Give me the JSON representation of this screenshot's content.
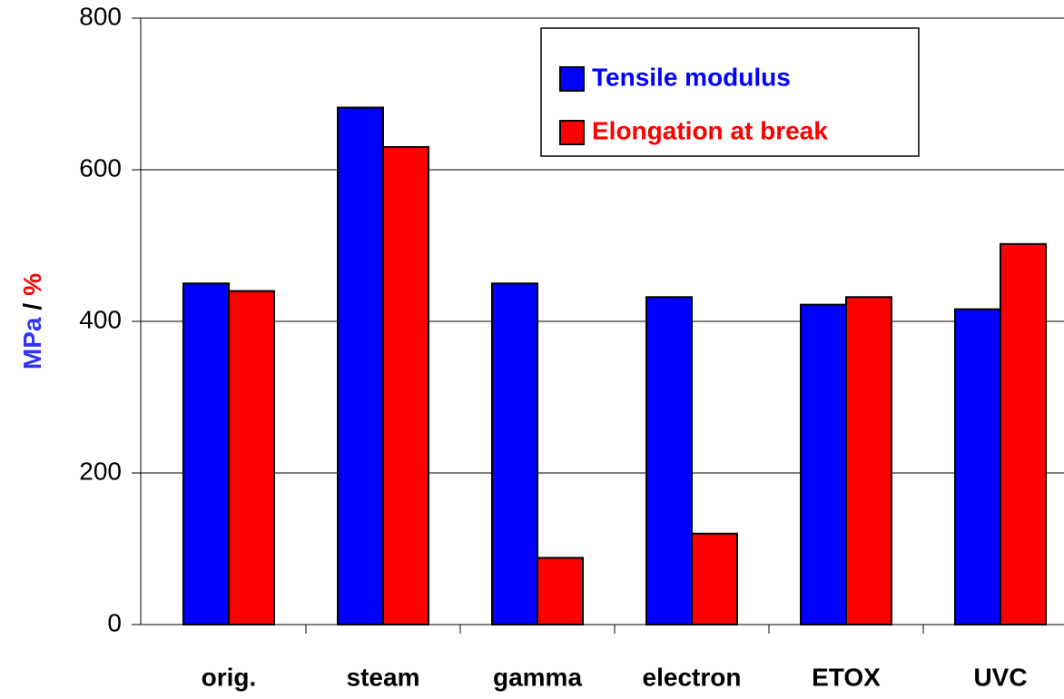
{
  "chart_data": {
    "type": "bar",
    "categories": [
      "orig.",
      "steam",
      "gamma",
      "electron",
      "ETOX",
      "UVC"
    ],
    "series": [
      {
        "name": "Tensile modulus",
        "color": "#0000ff",
        "values": [
          450,
          682,
          450,
          432,
          422,
          416
        ]
      },
      {
        "name": "Elongation at break",
        "color": "#ff0000",
        "values": [
          440,
          630,
          88,
          120,
          432,
          502
        ]
      }
    ],
    "ylabel_parts": [
      {
        "text": "MPa",
        "color": "#3333ff"
      },
      {
        "text": "/",
        "color": "#000000"
      },
      {
        "text": "%",
        "color": "#ff0000"
      }
    ],
    "ylim": [
      0,
      800
    ],
    "yticks": [
      0,
      200,
      400,
      600,
      800
    ],
    "grid": true,
    "legend": "top-right"
  }
}
